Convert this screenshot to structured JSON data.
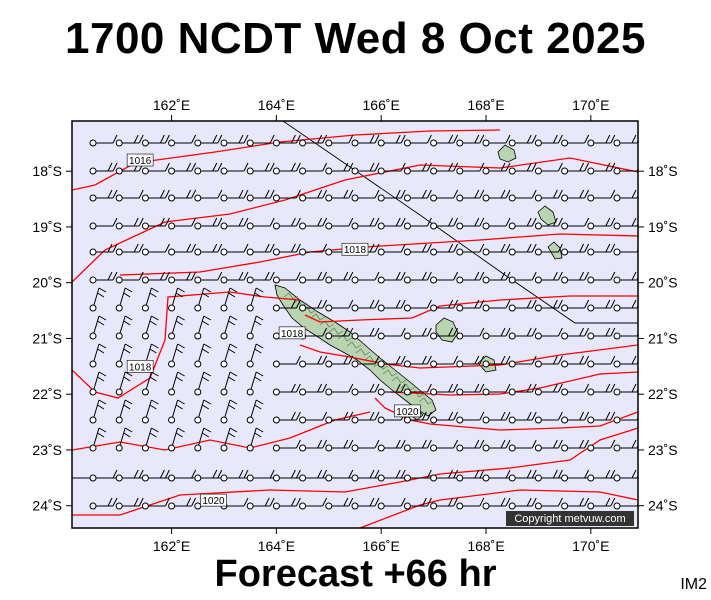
{
  "header": {
    "title": "1700 NCDT Wed 8 Oct 2025"
  },
  "footer": {
    "forecast": "Forecast +66 hr",
    "code": "IM2"
  },
  "map": {
    "lon_range": [
      160.1,
      170.9
    ],
    "lat_range": [
      -24.4,
      -17.1
    ],
    "background_color": "#e8e8fc",
    "isobar_color": "#ff0000",
    "land_color": "#b8d4b0",
    "copyright": "Copyright metvuw.com",
    "lon_ticks": [
      "162˚E",
      "164˚E",
      "166˚E",
      "168˚E",
      "170˚E"
    ],
    "lat_ticks": [
      "18˚S",
      "19˚S",
      "20˚S",
      "21˚S",
      "22˚S",
      "23˚S",
      "24˚S"
    ],
    "isobar_labels": [
      {
        "text": "1016",
        "lon": 161.4,
        "lat": -17.8
      },
      {
        "text": "1018",
        "lon": 165.5,
        "lat": -19.4
      },
      {
        "text": "1018",
        "lon": 164.3,
        "lat": -20.9
      },
      {
        "text": "1018",
        "lon": 161.4,
        "lat": -21.5
      },
      {
        "text": "1020",
        "lon": 166.5,
        "lat": -22.3
      },
      {
        "text": "1020",
        "lon": 162.8,
        "lat": -23.9
      }
    ]
  }
}
